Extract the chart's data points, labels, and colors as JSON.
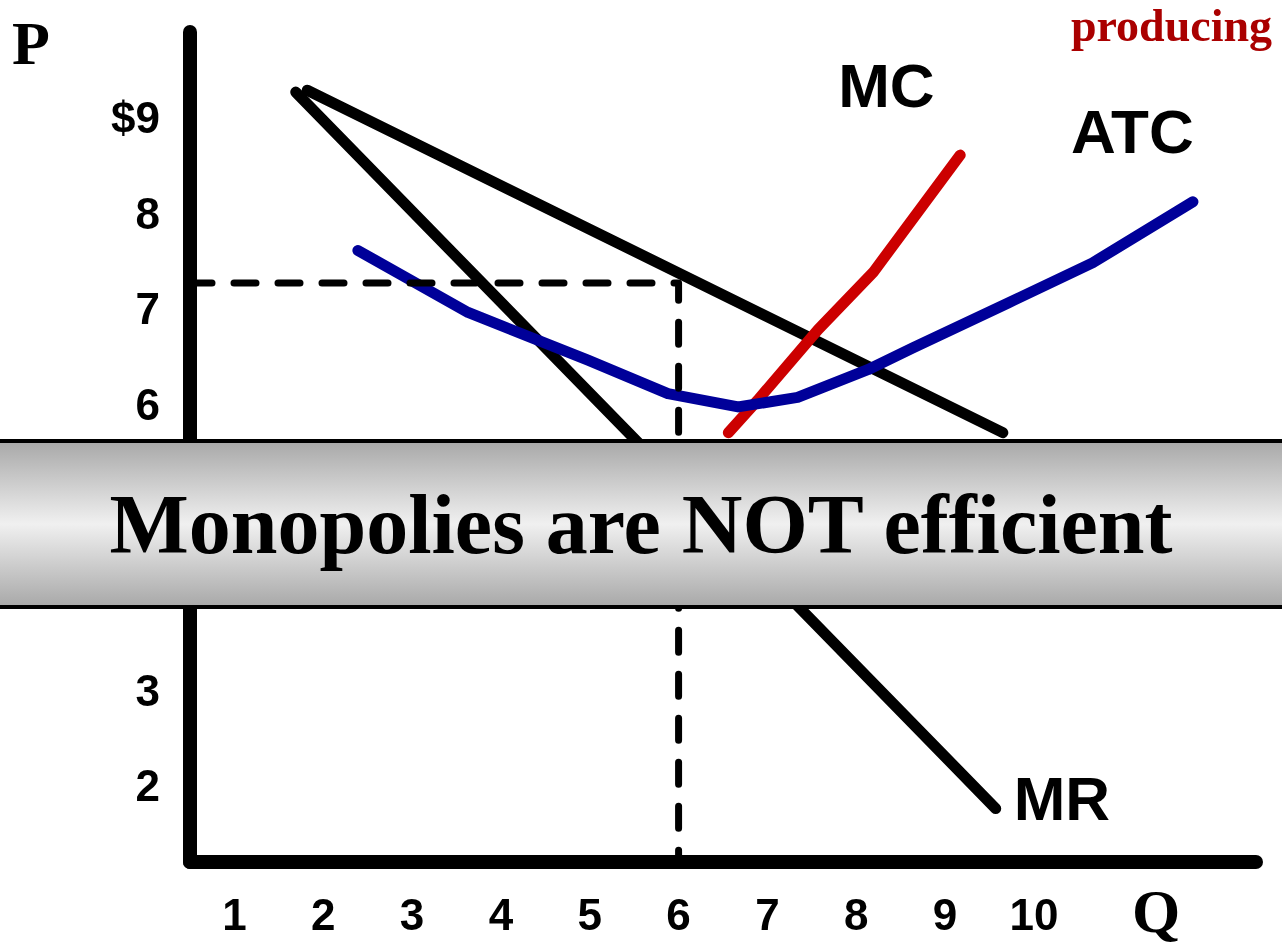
{
  "chart_data": {
    "type": "line",
    "xlabel": "Q",
    "ylabel": "P",
    "annotations": [
      "Monopolies are NOT efficient",
      "producing"
    ],
    "xlim": [
      0.5,
      12.5
    ],
    "xticks": [
      1,
      2,
      3,
      4,
      5,
      6,
      7,
      8,
      9,
      10
    ],
    "ylim": [
      1.2,
      9.9
    ],
    "yticks": [
      2,
      3,
      6,
      7,
      8,
      {
        "value": 9,
        "label": "$9"
      }
    ],
    "grid": false,
    "legend": false,
    "marker": "none",
    "series": [
      {
        "color": "#000000",
        "x": [
          1.82,
          9.65
        ],
        "values": [
          9.29,
          5.7
        ]
      },
      {
        "name": "MR",
        "color": "#000000",
        "x": [
          1.69,
          9.57
        ],
        "values": [
          9.27,
          1.76
        ]
      },
      {
        "name": "MC",
        "color": "#cc0000",
        "x": [
          6.56,
          6.89,
          7.57,
          8.19,
          9.17
        ],
        "values": [
          5.7,
          6.04,
          6.78,
          7.38,
          8.61
        ]
      },
      {
        "name": "ATC",
        "color": "#000099",
        "x": [
          2.39,
          3.63,
          4.98,
          5.88,
          6.67,
          7.34,
          8.13,
          8.64,
          9.71,
          10.66,
          11.79
        ],
        "values": [
          7.61,
          6.96,
          6.46,
          6.11,
          5.97,
          6.07,
          6.36,
          6.59,
          7.06,
          7.48,
          8.12
        ]
      },
      {
        "color": "#000000",
        "line_style": "dashed",
        "x": [
          0.5,
          6,
          6
        ],
        "values": [
          7.27,
          7.27,
          1.2
        ]
      }
    ]
  }
}
